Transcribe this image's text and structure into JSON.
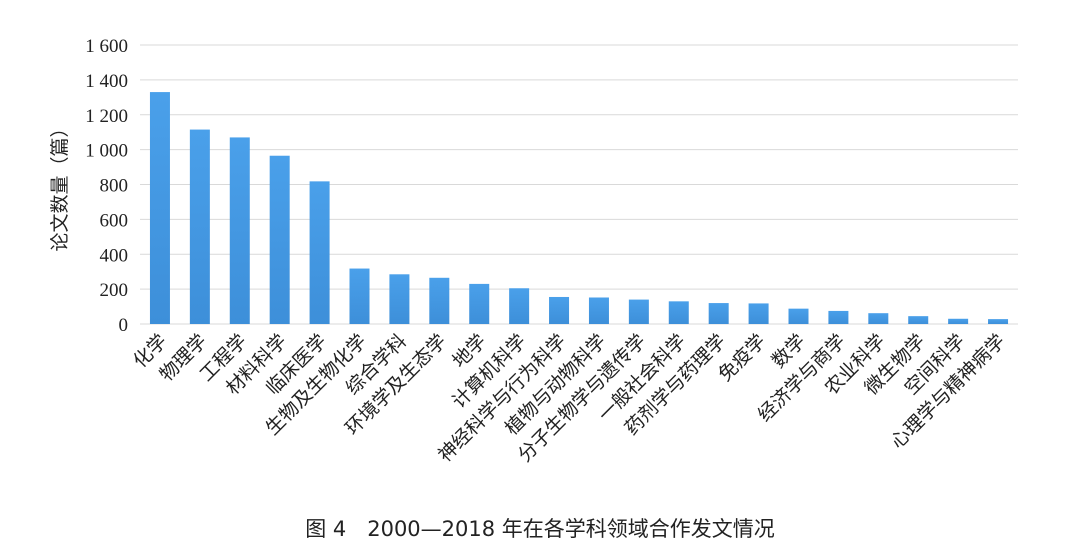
{
  "caption": "图 4　2000—2018 年在各学科领域合作发文情况",
  "chart_data": {
    "type": "bar",
    "ylabel": "论文数量（篇）",
    "ylim": [
      0,
      1600
    ],
    "yticks": [
      0,
      200,
      400,
      600,
      800,
      1000,
      1200,
      1400,
      1600
    ],
    "ytick_labels": [
      "0",
      "200",
      "400",
      "600",
      "800",
      "1 000",
      "1 200",
      "1 400",
      "1 600"
    ],
    "grid": true,
    "bar_color": "#3d8fd9",
    "categories": [
      "化学",
      "物理学",
      "工程学",
      "材料科学",
      "临床医学",
      "生物及生物化学",
      "综合学科",
      "环境学及生态学",
      "地学",
      "计算机科学",
      "神经科学与行为科学",
      "植物与动物科学",
      "分子生物学与遗传学",
      "一般社会科学",
      "药剂学与药理学",
      "免疫学",
      "数学",
      "经济学与商学",
      "农业科学",
      "微生物学",
      "空间科学",
      "心理学与精神病学"
    ],
    "values": [
      1330,
      1115,
      1070,
      965,
      818,
      318,
      285,
      265,
      230,
      205,
      155,
      152,
      140,
      130,
      120,
      118,
      88,
      75,
      62,
      45,
      30,
      28
    ]
  }
}
